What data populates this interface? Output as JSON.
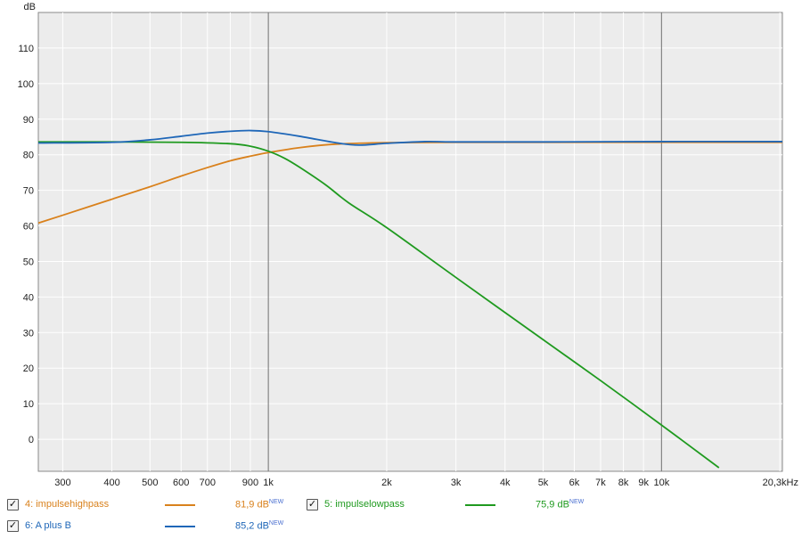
{
  "chart_data": {
    "type": "line",
    "x_scale": "log",
    "xlim": [
      260,
      20300
    ],
    "ylim": [
      -9,
      120
    ],
    "ylabel": "dB",
    "y_ticks": [
      0,
      10,
      20,
      30,
      40,
      50,
      60,
      70,
      80,
      90,
      100,
      110
    ],
    "x_ticks": [
      {
        "value": 300,
        "label": "300"
      },
      {
        "value": 400,
        "label": "400"
      },
      {
        "value": 500,
        "label": "500"
      },
      {
        "value": 600,
        "label": "600"
      },
      {
        "value": 700,
        "label": "700"
      },
      {
        "value": 900,
        "label": "900"
      },
      {
        "value": 1000,
        "label": "1k"
      },
      {
        "value": 2000,
        "label": "2k"
      },
      {
        "value": 3000,
        "label": "3k"
      },
      {
        "value": 4000,
        "label": "4k"
      },
      {
        "value": 5000,
        "label": "5k"
      },
      {
        "value": 6000,
        "label": "6k"
      },
      {
        "value": 7000,
        "label": "7k"
      },
      {
        "value": 8000,
        "label": "8k"
      },
      {
        "value": 9000,
        "label": "9k"
      },
      {
        "value": 10000,
        "label": "10k"
      },
      {
        "value": 20300,
        "label": "20,3kHz"
      }
    ],
    "minor_grid": [
      800
    ],
    "major_grid": [
      1000,
      10000
    ],
    "grid": true,
    "series": [
      {
        "name": "4: impulsehighpass",
        "color": "#d9811c",
        "x": [
          260,
          300,
          400,
          500,
          600,
          700,
          800,
          900,
          1000,
          1200,
          1500,
          2000,
          3000,
          5000,
          10000,
          20300
        ],
        "y": [
          60.8,
          63.0,
          67.5,
          71.0,
          74.0,
          76.4,
          78.3,
          79.6,
          80.6,
          82.0,
          83.0,
          83.4,
          83.5,
          83.5,
          83.5,
          83.5
        ]
      },
      {
        "name": "5: impulselowpass",
        "color": "#1f9a1f",
        "x": [
          260,
          400,
          600,
          800,
          900,
          1000,
          1100,
          1200,
          1400,
          1600,
          2000,
          3000,
          5000,
          7000,
          10000,
          14000
        ],
        "y": [
          83.6,
          83.6,
          83.5,
          83.1,
          82.4,
          81.0,
          79.0,
          76.5,
          71.5,
          66.5,
          59.5,
          45.5,
          28.0,
          16.5,
          4.0,
          -8.0
        ]
      },
      {
        "name": "6: A plus B",
        "color": "#1f67b8",
        "x": [
          260,
          400,
          500,
          600,
          700,
          800,
          900,
          1000,
          1200,
          1500,
          1700,
          2000,
          2500,
          3000,
          5000,
          10000,
          20300
        ],
        "y": [
          83.3,
          83.5,
          84.2,
          85.2,
          86.1,
          86.6,
          86.8,
          86.5,
          85.2,
          83.3,
          82.7,
          83.2,
          83.7,
          83.6,
          83.6,
          83.7,
          83.7
        ]
      }
    ]
  },
  "legend": [
    {
      "label": "4: impulsehighpass",
      "value": "81,9 dB",
      "badge": "NEW",
      "color": "#d9811c",
      "checked": true
    },
    {
      "label": "5: impulselowpass",
      "value": "75,9 dB",
      "badge": "NEW",
      "color": "#1f9a1f",
      "checked": true
    },
    {
      "label": "6: A plus B",
      "value": "85,2 dB",
      "badge": "NEW",
      "color": "#1f67b8",
      "checked": true
    }
  ]
}
